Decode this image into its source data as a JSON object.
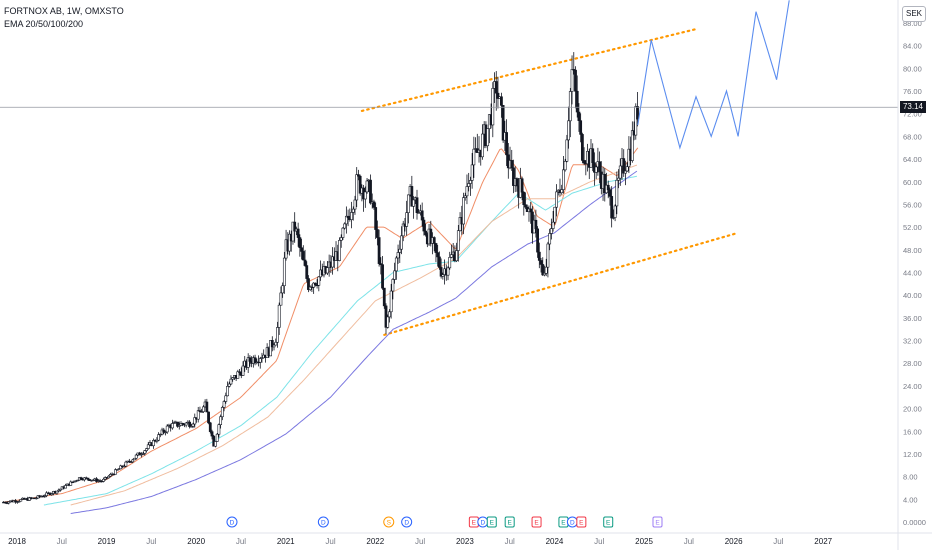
{
  "header": {
    "symbol_line": "FORTNOX AB, 1W, OMXSTO",
    "indicator_line": "EMA 20/50/100/200"
  },
  "currency": "SEK",
  "current_price_label": "73.14",
  "colors": {
    "candle": "#131722",
    "ema20": "#f08e67",
    "ema50": "#7de3e8",
    "ema100": "#f0bd9f",
    "ema200": "#7b78e0",
    "trendline": "#ff9800",
    "projection": "#5b8def",
    "price_line": "#9598a1",
    "event_red": "#f23645",
    "event_teal": "#089981",
    "event_blue": "#2962ff",
    "event_orange": "#ff9800",
    "event_purple": "#9c7cf4"
  },
  "chart_data": {
    "type": "candlestick",
    "ylim": [
      0,
      90
    ],
    "yticks": [
      "88.00",
      "84.00",
      "80.00",
      "76.00",
      "72.00",
      "68.00",
      "64.00",
      "60.00",
      "56.00",
      "52.00",
      "48.00",
      "44.00",
      "40.00",
      "36.00",
      "32.00",
      "28.00",
      "24.00",
      "20.00",
      "16.00",
      "12.00",
      "8.00",
      "4.00",
      "0.0000"
    ],
    "ytick_values": [
      88,
      84,
      80,
      76,
      72,
      68,
      64,
      60,
      56,
      52,
      48,
      44,
      40,
      36,
      32,
      28,
      24,
      20,
      16,
      12,
      8,
      4,
      0
    ],
    "xlim": [
      2018.0,
      2027.5
    ],
    "xticks": [
      {
        "label": "2018",
        "x": 2018.0,
        "year": true
      },
      {
        "label": "Jul",
        "x": 2018.5,
        "year": false
      },
      {
        "label": "2019",
        "x": 2019.0,
        "year": true
      },
      {
        "label": "Jul",
        "x": 2019.5,
        "year": false
      },
      {
        "label": "2020",
        "x": 2020.0,
        "year": true
      },
      {
        "label": "Jul",
        "x": 2020.5,
        "year": false
      },
      {
        "label": "2021",
        "x": 2021.0,
        "year": true
      },
      {
        "label": "Jul",
        "x": 2021.5,
        "year": false
      },
      {
        "label": "2022",
        "x": 2022.0,
        "year": true
      },
      {
        "label": "Jul",
        "x": 2022.5,
        "year": false
      },
      {
        "label": "2023",
        "x": 2023.0,
        "year": true
      },
      {
        "label": "Jul",
        "x": 2023.5,
        "year": false
      },
      {
        "label": "2024",
        "x": 2024.0,
        "year": true
      },
      {
        "label": "Jul",
        "x": 2024.5,
        "year": false
      },
      {
        "label": "2025",
        "x": 2025.0,
        "year": true
      },
      {
        "label": "Jul",
        "x": 2025.5,
        "year": false
      },
      {
        "label": "2026",
        "x": 2026.0,
        "year": true
      },
      {
        "label": "Jul",
        "x": 2026.5,
        "year": false
      },
      {
        "label": "2027",
        "x": 2027.0,
        "year": true
      }
    ],
    "current_price": 73.14,
    "price_anchors": [
      [
        2017.85,
        3.5
      ],
      [
        2018.2,
        4.2
      ],
      [
        2018.45,
        5.5
      ],
      [
        2018.7,
        7.8
      ],
      [
        2018.95,
        7.2
      ],
      [
        2019.15,
        9.5
      ],
      [
        2019.45,
        13.0
      ],
      [
        2019.7,
        17.0
      ],
      [
        2019.95,
        17.5
      ],
      [
        2020.1,
        20.5
      ],
      [
        2020.2,
        13.5
      ],
      [
        2020.35,
        24.0
      ],
      [
        2020.6,
        28.5
      ],
      [
        2020.8,
        30.0
      ],
      [
        2020.9,
        33.0
      ],
      [
        2021.0,
        48.0
      ],
      [
        2021.1,
        52.0
      ],
      [
        2021.25,
        42.0
      ],
      [
        2021.45,
        44.0
      ],
      [
        2021.6,
        48.0
      ],
      [
        2021.8,
        60.0
      ],
      [
        2021.95,
        58.0
      ],
      [
        2022.05,
        46.0
      ],
      [
        2022.12,
        34.0
      ],
      [
        2022.25,
        48.0
      ],
      [
        2022.4,
        58.0
      ],
      [
        2022.55,
        52.0
      ],
      [
        2022.75,
        44.0
      ],
      [
        2022.9,
        48.0
      ],
      [
        2023.05,
        62.0
      ],
      [
        2023.25,
        69.0
      ],
      [
        2023.35,
        77.0
      ],
      [
        2023.5,
        62.0
      ],
      [
        2023.65,
        58.0
      ],
      [
        2023.8,
        50.0
      ],
      [
        2023.88,
        42.0
      ],
      [
        2023.98,
        54.0
      ],
      [
        2024.1,
        62.0
      ],
      [
        2024.2,
        80.0
      ],
      [
        2024.3,
        66.0
      ],
      [
        2024.5,
        62.0
      ],
      [
        2024.65,
        55.0
      ],
      [
        2024.75,
        62.0
      ],
      [
        2024.85,
        66.0
      ],
      [
        2024.93,
        73.14
      ]
    ],
    "ema_anchors": {
      "EMA 20": [
        [
          2017.85,
          3.5
        ],
        [
          2018.5,
          5.0
        ],
        [
          2019.0,
          7.5
        ],
        [
          2019.5,
          12.5
        ],
        [
          2020.0,
          16.5
        ],
        [
          2020.5,
          22.0
        ],
        [
          2020.9,
          28.5
        ],
        [
          2021.2,
          42.0
        ],
        [
          2021.6,
          45.0
        ],
        [
          2021.9,
          52.0
        ],
        [
          2022.1,
          52.0
        ],
        [
          2022.3,
          50.0
        ],
        [
          2022.6,
          53.0
        ],
        [
          2022.9,
          48.0
        ],
        [
          2023.2,
          60.0
        ],
        [
          2023.4,
          66.0
        ],
        [
          2023.6,
          62.0
        ],
        [
          2023.8,
          54.0
        ],
        [
          2024.0,
          52.0
        ],
        [
          2024.2,
          63.0
        ],
        [
          2024.5,
          63.0
        ],
        [
          2024.7,
          61.0
        ],
        [
          2024.93,
          66.0
        ]
      ],
      "EMA 50": [
        [
          2018.3,
          3.0
        ],
        [
          2019.0,
          5.0
        ],
        [
          2019.5,
          8.5
        ],
        [
          2020.0,
          12.5
        ],
        [
          2020.5,
          17.0
        ],
        [
          2020.9,
          22.0
        ],
        [
          2021.3,
          30.0
        ],
        [
          2021.8,
          39.0
        ],
        [
          2022.2,
          44.0
        ],
        [
          2022.6,
          45.5
        ],
        [
          2022.9,
          46.0
        ],
        [
          2023.3,
          53.0
        ],
        [
          2023.6,
          58.0
        ],
        [
          2023.9,
          55.0
        ],
        [
          2024.2,
          58.0
        ],
        [
          2024.6,
          60.0
        ],
        [
          2024.93,
          61.0
        ]
      ],
      "EMA 100": [
        [
          2018.6,
          3.0
        ],
        [
          2019.2,
          5.5
        ],
        [
          2019.8,
          9.5
        ],
        [
          2020.3,
          13.5
        ],
        [
          2020.8,
          18.5
        ],
        [
          2021.2,
          25.0
        ],
        [
          2021.6,
          32.0
        ],
        [
          2022.0,
          39.0
        ],
        [
          2022.5,
          43.0
        ],
        [
          2022.9,
          46.5
        ],
        [
          2023.3,
          53.0
        ],
        [
          2023.7,
          57.0
        ],
        [
          2024.0,
          57.0
        ],
        [
          2024.4,
          60.0
        ],
        [
          2024.93,
          63.0
        ]
      ],
      "EMA 200": [
        [
          2018.6,
          1.5
        ],
        [
          2019.0,
          2.5
        ],
        [
          2019.5,
          4.5
        ],
        [
          2020.0,
          7.5
        ],
        [
          2020.5,
          11.0
        ],
        [
          2021.0,
          15.5
        ],
        [
          2021.5,
          22.0
        ],
        [
          2021.9,
          29.0
        ],
        [
          2022.2,
          34.0
        ],
        [
          2022.6,
          37.0
        ],
        [
          2022.9,
          39.5
        ],
        [
          2023.3,
          45.0
        ],
        [
          2023.7,
          49.0
        ],
        [
          2024.0,
          51.0
        ],
        [
          2024.4,
          56.0
        ],
        [
          2024.93,
          62.0
        ]
      ]
    },
    "trendlines": [
      {
        "name": "upper",
        "from": [
          2021.85,
          72.5
        ],
        "to": [
          2025.6,
          87.0
        ]
      },
      {
        "name": "lower",
        "from": [
          2022.1,
          33.0
        ],
        "to": [
          2026.05,
          51.0
        ]
      }
    ],
    "projection_path": [
      [
        2024.93,
        70.0
      ],
      [
        2025.08,
        85.0
      ],
      [
        2025.4,
        66.0
      ],
      [
        2025.58,
        75.0
      ],
      [
        2025.75,
        68.0
      ],
      [
        2025.92,
        76.0
      ],
      [
        2026.05,
        68.0
      ],
      [
        2026.25,
        90.0
      ],
      [
        2026.48,
        78.0
      ],
      [
        2026.62,
        92.0
      ]
    ],
    "events": [
      {
        "label": "D",
        "x": 2020.4,
        "kind": "dividend",
        "color": "#2962ff"
      },
      {
        "label": "D",
        "x": 2021.42,
        "kind": "dividend",
        "color": "#2962ff"
      },
      {
        "label": "S",
        "x": 2022.15,
        "kind": "split",
        "color": "#ff9800"
      },
      {
        "label": "D",
        "x": 2022.35,
        "kind": "dividend",
        "color": "#2962ff"
      },
      {
        "label": "E",
        "x": 2023.1,
        "kind": "earnings",
        "color": "#f23645"
      },
      {
        "label": "D",
        "x": 2023.2,
        "kind": "dividend",
        "color": "#2962ff"
      },
      {
        "label": "E",
        "x": 2023.3,
        "kind": "earnings",
        "color": "#089981"
      },
      {
        "label": "E",
        "x": 2023.5,
        "kind": "earnings",
        "color": "#089981"
      },
      {
        "label": "E",
        "x": 2023.8,
        "kind": "earnings",
        "color": "#f23645"
      },
      {
        "label": "E",
        "x": 2024.1,
        "kind": "earnings",
        "color": "#089981"
      },
      {
        "label": "D",
        "x": 2024.2,
        "kind": "dividend",
        "color": "#2962ff"
      },
      {
        "label": "E",
        "x": 2024.3,
        "kind": "earnings",
        "color": "#f23645"
      },
      {
        "label": "E",
        "x": 2024.6,
        "kind": "earnings",
        "color": "#089981"
      },
      {
        "label": "E",
        "x": 2025.15,
        "kind": "earnings-upcoming",
        "color": "#9c7cf4"
      }
    ]
  }
}
